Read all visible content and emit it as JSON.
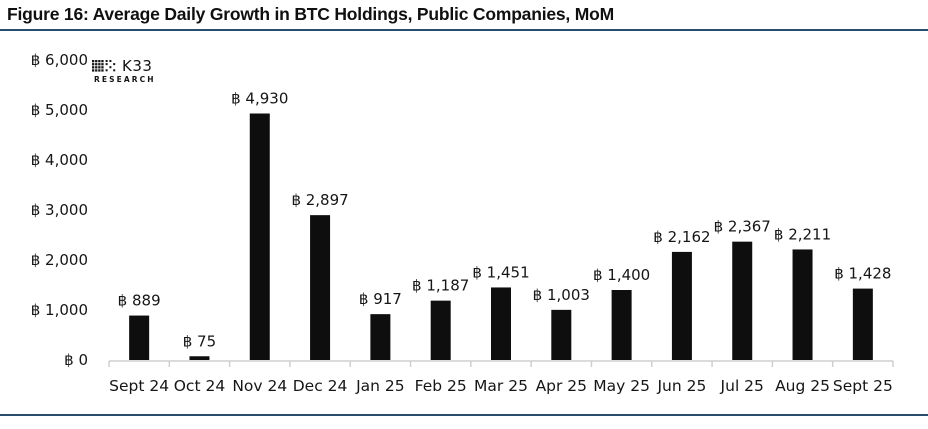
{
  "header": {
    "title": "Figure 16: Average Daily Growth in BTC Holdings, Public Companies, MoM"
  },
  "logo": {
    "brand": "K33",
    "sub_brand": "RESEARCH",
    "icon": "k33-dot-matrix-icon"
  },
  "chart_data": {
    "type": "bar",
    "title": "Average Daily Growth in BTC Holdings, Public Companies, MoM",
    "currency_prefix": "฿",
    "categories": [
      "Sept 24",
      "Oct 24",
      "Nov 24",
      "Dec 24",
      "Jan 25",
      "Feb 25",
      "Mar 25",
      "Apr 25",
      "May 25",
      "Jun 25",
      "Jul 25",
      "Aug 25",
      "Sept 25"
    ],
    "values": [
      889,
      75,
      4930,
      2897,
      917,
      1187,
      1451,
      1003,
      1400,
      2162,
      2367,
      2211,
      1428
    ],
    "bar_labels": [
      "฿ 889",
      "฿ 75",
      "฿ 4,930",
      "฿ 2,897",
      "฿ 917",
      "฿ 1,187",
      "฿ 1,451",
      "฿ 1,003",
      "฿ 1,400",
      "฿ 2,162",
      "฿ 2,367",
      "฿ 2,211",
      "฿ 1,428"
    ],
    "xlabel": "",
    "ylabel": "",
    "y_axis": {
      "range": [
        0,
        6000
      ],
      "ticks": [
        0,
        1000,
        2000,
        3000,
        4000,
        5000,
        6000
      ],
      "tick_labels": [
        "฿ 0",
        "฿ 1,000",
        "฿ 2,000",
        "฿ 3,000",
        "฿ 4,000",
        "฿ 5,000",
        "฿ 6,000"
      ]
    },
    "grid": false,
    "legend": null,
    "colors": {
      "bar": "#0e0e0e",
      "axis": "#cfcfcf",
      "label": "#161616",
      "rule": "#2a4c6f"
    }
  }
}
